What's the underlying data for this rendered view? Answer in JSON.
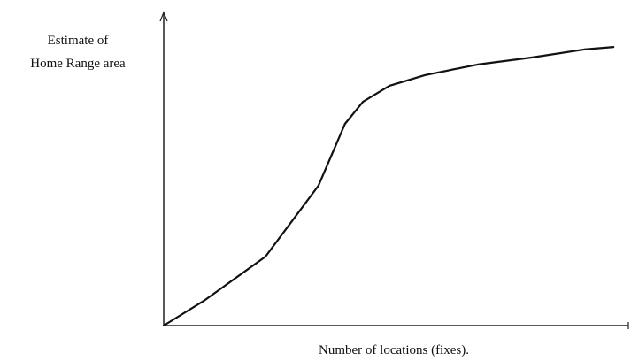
{
  "chart_data": {
    "type": "line",
    "ylabel": [
      "Estimate of",
      "Home Range area"
    ],
    "xlabel": "Number of locations (fixes).",
    "x": [
      0,
      8.6,
      21.9,
      33.3,
      39.0,
      42.9,
      48.6,
      56.2,
      67.6,
      79.0,
      90.5,
      96.8
    ],
    "series": [
      {
        "color": "#111111",
        "values": [
          0,
          7.9,
          22.1,
          44.8,
          64.6,
          71.7,
          76.8,
          80.2,
          83.6,
          85.8,
          88.4,
          89.2
        ]
      }
    ],
    "xlim": [
      0,
      100
    ],
    "ylim": [
      0,
      100
    ]
  }
}
